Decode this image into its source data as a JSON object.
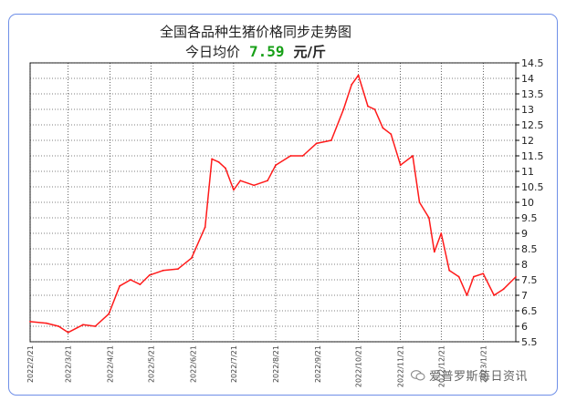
{
  "title": "全国各品种生猪价格同步走势图",
  "subtitle": {
    "prefix": "今日均价",
    "value": "7.59",
    "unit": "元/斤"
  },
  "watermark": {
    "text": "爱普罗斯每日资讯",
    "icon": "wechat-icon"
  },
  "colors": {
    "line": "#ff1a1a",
    "price": "#18a018",
    "frame": "#6f8fe8"
  },
  "chart_data": {
    "type": "line",
    "title": "全国各品种生猪价格同步走势图",
    "xlabel": "",
    "ylabel": "",
    "ylim": [
      5.5,
      14.5
    ],
    "yticks": [
      5.5,
      6,
      6.5,
      7,
      7.5,
      8,
      8.5,
      9,
      9.5,
      10,
      10.5,
      11,
      11.5,
      12,
      12.5,
      13,
      13.5,
      14,
      14.5
    ],
    "ytick_labels": [
      "5.5",
      "6",
      "6.5",
      "7",
      "7.5",
      "8",
      "8.5",
      "9",
      "9.5",
      "10",
      "10.5",
      "11",
      "11.5",
      "12",
      "12.5",
      "13",
      "13.5",
      "14",
      "14.5"
    ],
    "xticks": [
      "2022/2/21",
      "2022/3/21",
      "2022/4/21",
      "2022/5/21",
      "2022/6/21",
      "2022/7/21",
      "2022/8/21",
      "2022/9/21",
      "2022/10/21",
      "2022/11/21",
      "2022/12/21",
      "2023/1/21"
    ],
    "grid": true,
    "legend": "none",
    "series": [
      {
        "color": "#ff1a1a",
        "x": [
          "2022-02-21",
          "2022-03-05",
          "2022-03-14",
          "2022-03-21",
          "2022-04-01",
          "2022-04-10",
          "2022-04-20",
          "2022-04-28",
          "2022-05-06",
          "2022-05-13",
          "2022-05-20",
          "2022-05-30",
          "2022-06-10",
          "2022-06-20",
          "2022-06-30",
          "2022-07-05",
          "2022-07-10",
          "2022-07-15",
          "2022-07-21",
          "2022-07-26",
          "2022-08-05",
          "2022-08-15",
          "2022-08-21",
          "2022-09-01",
          "2022-09-10",
          "2022-09-20",
          "2022-10-01",
          "2022-10-10",
          "2022-10-16",
          "2022-10-21",
          "2022-10-28",
          "2022-11-02",
          "2022-11-08",
          "2022-11-14",
          "2022-11-21",
          "2022-11-30",
          "2022-12-05",
          "2022-12-12",
          "2022-12-16",
          "2022-12-21",
          "2022-12-27",
          "2023-01-03",
          "2023-01-09",
          "2023-01-14",
          "2023-01-21",
          "2023-01-29",
          "2023-02-05",
          "2023-02-14"
        ],
        "values": [
          6.15,
          6.1,
          6.0,
          5.8,
          6.05,
          6.0,
          6.4,
          7.3,
          7.5,
          7.35,
          7.65,
          7.8,
          7.85,
          8.2,
          9.2,
          11.4,
          11.3,
          11.1,
          10.4,
          10.7,
          10.55,
          10.7,
          11.2,
          11.5,
          11.5,
          11.9,
          12.0,
          13.0,
          13.8,
          14.1,
          13.1,
          13.0,
          12.4,
          12.2,
          11.2,
          11.5,
          10.0,
          9.5,
          8.4,
          9.0,
          7.8,
          7.6,
          7.0,
          7.6,
          7.7,
          7.0,
          7.2,
          7.59
        ]
      }
    ]
  }
}
